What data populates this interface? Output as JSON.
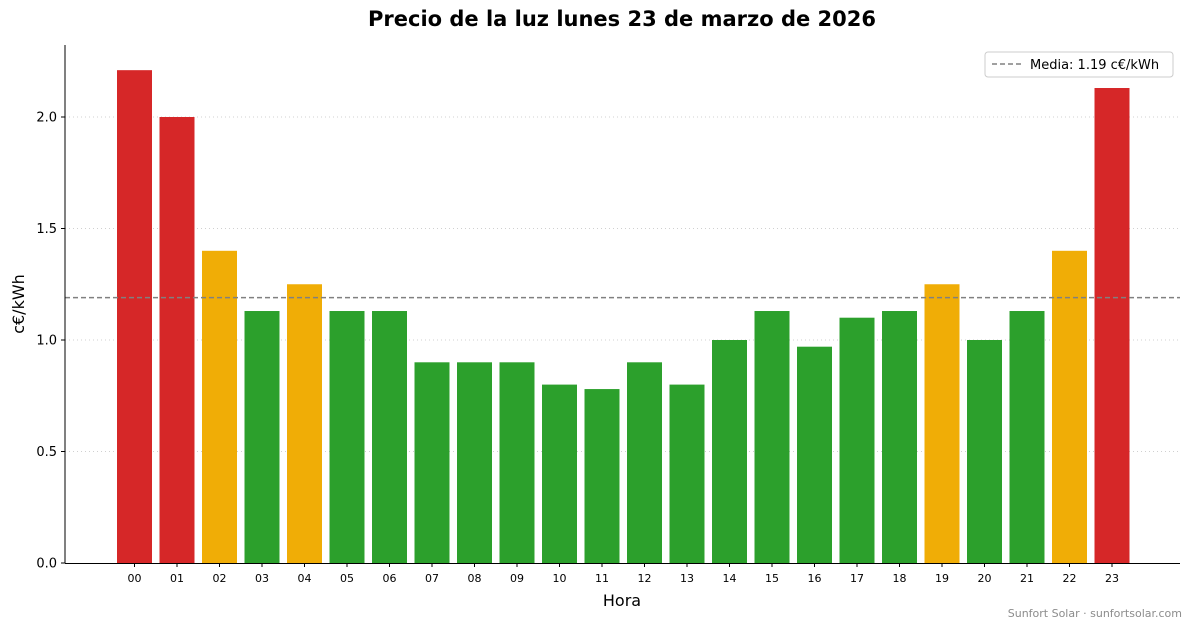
{
  "chart_data": {
    "type": "bar",
    "title": "Precio de la luz lunes 23 de marzo de 2026",
    "xlabel": "Hora",
    "ylabel": "c€/kWh",
    "ylim": [
      0,
      2.32
    ],
    "yticks": [
      "0.0",
      "0.5",
      "1.0",
      "1.5",
      "2.0"
    ],
    "ytick_values": [
      0,
      0.5,
      1.0,
      1.5,
      2.0
    ],
    "grid": "horizontal dotted",
    "categories": [
      "00",
      "01",
      "02",
      "03",
      "04",
      "05",
      "06",
      "07",
      "08",
      "09",
      "10",
      "11",
      "12",
      "13",
      "14",
      "15",
      "16",
      "17",
      "18",
      "19",
      "20",
      "21",
      "22",
      "23"
    ],
    "values": [
      2.21,
      2.0,
      1.4,
      1.13,
      1.25,
      1.13,
      1.13,
      0.9,
      0.9,
      0.9,
      0.8,
      0.78,
      0.9,
      0.8,
      1.0,
      1.13,
      0.97,
      1.1,
      1.13,
      1.25,
      1.0,
      1.13,
      1.4,
      2.13
    ],
    "bar_levels": [
      "high",
      "high",
      "mid",
      "low",
      "mid",
      "low",
      "low",
      "low",
      "low",
      "low",
      "low",
      "low",
      "low",
      "low",
      "low",
      "low",
      "low",
      "low",
      "low",
      "mid",
      "low",
      "low",
      "mid",
      "high"
    ],
    "mean": 1.19,
    "legend": {
      "label": "Media: 1.19 c€/kWh",
      "placement": "top-right"
    }
  },
  "colors": {
    "high": "#d62728",
    "mid": "#f0ad06",
    "low": "#2ca02c",
    "mean_line": "#808080",
    "grid": "#d0d0d0"
  },
  "footer": "Sunfort Solar · sunfortsolar.com"
}
